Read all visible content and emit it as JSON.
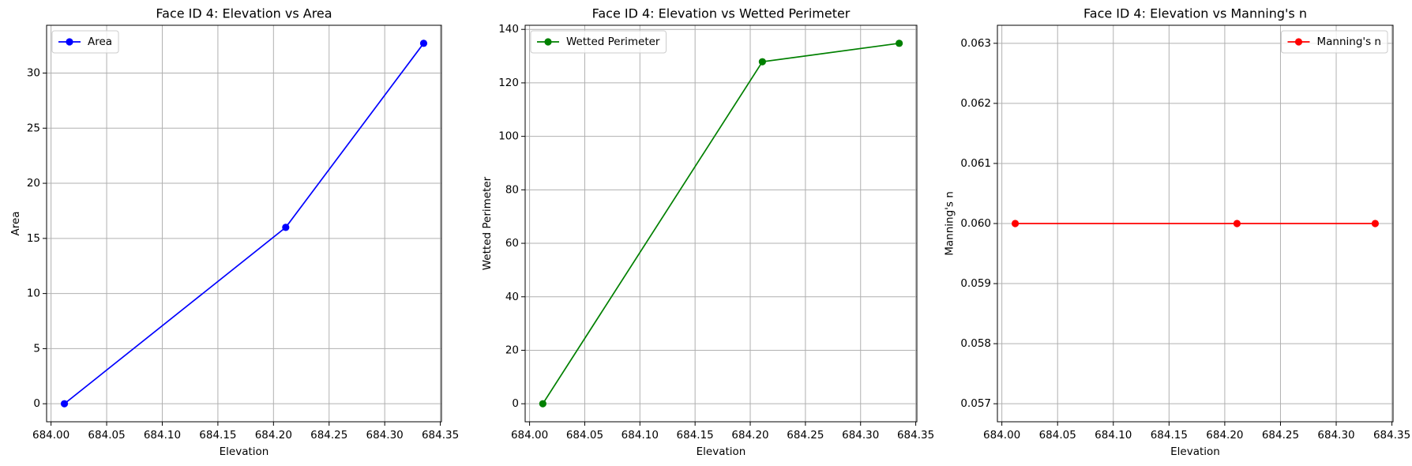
{
  "chart_data": [
    {
      "type": "line",
      "title": "Face ID 4: Elevation vs Area",
      "xlabel": "Elevation",
      "ylabel": "Area",
      "x": [
        684.012,
        684.211,
        684.335
      ],
      "series": [
        {
          "name": "Area",
          "color": "#0000ff",
          "values": [
            0,
            16.0,
            32.7
          ]
        }
      ],
      "xlim": [
        683.996,
        684.351
      ],
      "ylim": [
        -1.635,
        34.335
      ],
      "xticks": [
        {
          "value": 684.0,
          "label": "684.00"
        },
        {
          "value": 684.05,
          "label": "684.05"
        },
        {
          "value": 684.1,
          "label": "684.10"
        },
        {
          "value": 684.15,
          "label": "684.15"
        },
        {
          "value": 684.2,
          "label": "684.20"
        },
        {
          "value": 684.25,
          "label": "684.25"
        },
        {
          "value": 684.3,
          "label": "684.30"
        },
        {
          "value": 684.35,
          "label": "684.35"
        }
      ],
      "yticks": [
        0,
        5,
        10,
        15,
        20,
        25,
        30
      ],
      "grid": true,
      "legend": "upper left"
    },
    {
      "type": "line",
      "title": "Face ID 4: Elevation vs Wetted Perimeter",
      "xlabel": "Elevation",
      "ylabel": "Wetted Perimeter",
      "x": [
        684.012,
        684.211,
        684.335
      ],
      "series": [
        {
          "name": "Wetted Perimeter",
          "color": "#008000",
          "values": [
            0,
            127.9,
            134.8
          ]
        }
      ],
      "xlim": [
        683.996,
        684.351
      ],
      "ylim": [
        -6.74,
        141.54
      ],
      "xticks": [
        {
          "value": 684.0,
          "label": "684.00"
        },
        {
          "value": 684.05,
          "label": "684.05"
        },
        {
          "value": 684.1,
          "label": "684.10"
        },
        {
          "value": 684.15,
          "label": "684.15"
        },
        {
          "value": 684.2,
          "label": "684.20"
        },
        {
          "value": 684.25,
          "label": "684.25"
        },
        {
          "value": 684.3,
          "label": "684.30"
        },
        {
          "value": 684.35,
          "label": "684.35"
        }
      ],
      "yticks": [
        0,
        20,
        40,
        60,
        80,
        100,
        120,
        140
      ],
      "grid": true,
      "legend": "upper left"
    },
    {
      "type": "line",
      "title": "Face ID 4: Elevation vs Manning's n",
      "xlabel": "Elevation",
      "ylabel": "Manning's n",
      "x": [
        684.012,
        684.211,
        684.335
      ],
      "series": [
        {
          "name": "Manning's n",
          "color": "#ff0000",
          "values": [
            0.06,
            0.06,
            0.06
          ]
        }
      ],
      "xlim": [
        683.996,
        684.351
      ],
      "ylim": [
        0.0567,
        0.0633
      ],
      "xticks": [
        {
          "value": 684.0,
          "label": "684.00"
        },
        {
          "value": 684.05,
          "label": "684.05"
        },
        {
          "value": 684.1,
          "label": "684.10"
        },
        {
          "value": 684.15,
          "label": "684.15"
        },
        {
          "value": 684.2,
          "label": "684.20"
        },
        {
          "value": 684.25,
          "label": "684.25"
        },
        {
          "value": 684.3,
          "label": "684.30"
        },
        {
          "value": 684.35,
          "label": "684.35"
        }
      ],
      "yticks": [
        0.057,
        0.058,
        0.059,
        {
          "value": 0.06,
          "label": "0.060"
        },
        0.061,
        0.062,
        0.063
      ],
      "grid": true,
      "legend": "upper right"
    }
  ]
}
